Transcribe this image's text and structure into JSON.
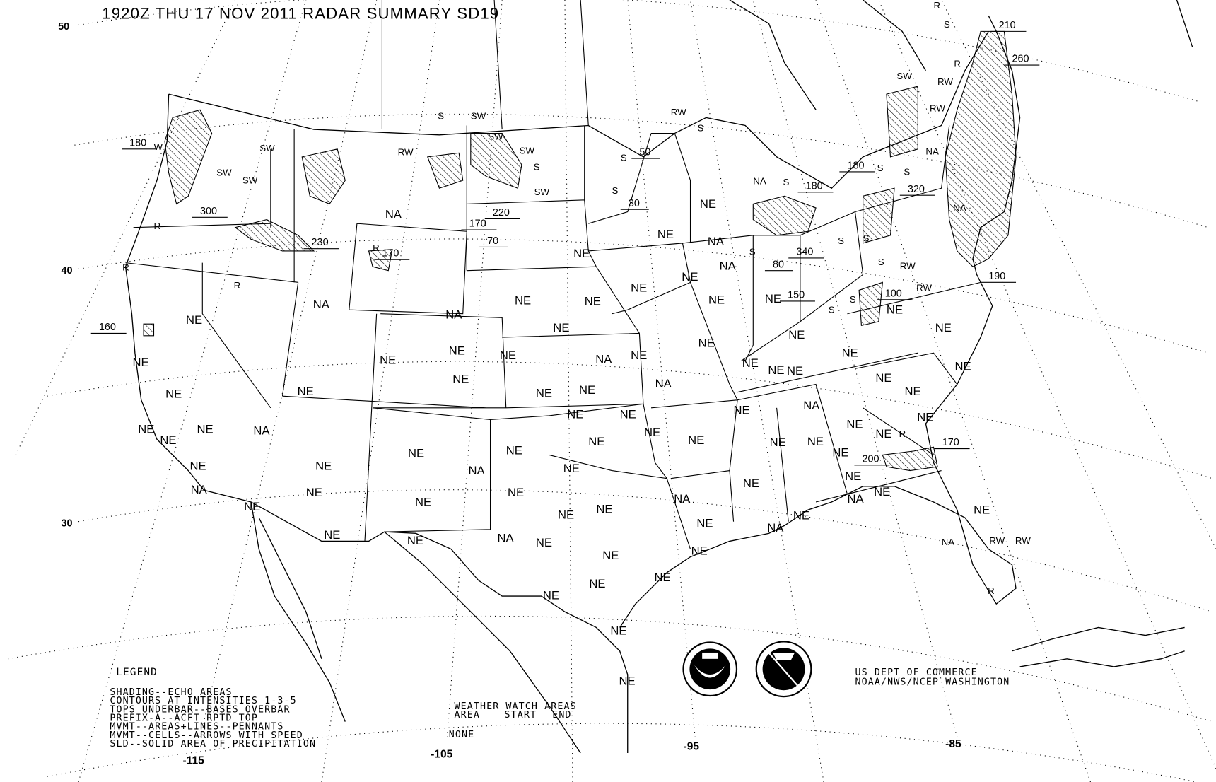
{
  "title": "1920Z THU 17 NOV 2011 RADAR SUMMARY SD19",
  "latitude_labels": [
    "50",
    "40",
    "30"
  ],
  "longitude_labels": [
    "-115",
    "-105",
    "-95",
    "-85"
  ],
  "legend": {
    "heading": "LEGEND",
    "lines": [
      "SHADING--ECHO AREAS",
      "CONTOURS AT INTENSITIES 1-3-5",
      "TOPS UNDERBAR--BASES OVERBAR",
      "PREFIX-A--ACFT RPTD TOP",
      "MVMT--AREAS+LINES--PENNANTS",
      "MVMT--CELLS--ARROWS WITH SPEED",
      "SLD--SOLID AREA OF PRECIPITATION"
    ]
  },
  "watch_areas": {
    "heading": "WEATHER WATCH AREAS",
    "columns": [
      "AREA",
      "START",
      "END"
    ],
    "value": "NONE"
  },
  "credit": {
    "line1": "US DEPT OF COMMERCE",
    "line2": "NOAA/NWS/NCEP WASHINGTON"
  },
  "logos": [
    "NOAA",
    "NATIONAL WEATHER SERVICE"
  ],
  "echo_tops": [
    "180",
    "300",
    "230",
    "170",
    "170",
    "70",
    "220",
    "50",
    "30",
    "180",
    "180",
    "320",
    "80",
    "340",
    "150",
    "100",
    "190",
    "210",
    "260",
    "160",
    "200",
    "170"
  ],
  "echo_codes": [
    "S",
    "SW",
    "SW",
    "SW",
    "S",
    "SW",
    "RW",
    "S",
    "S",
    "RW",
    "S",
    "SW",
    "SW",
    "SW",
    "W",
    "R",
    "R",
    "R",
    "R",
    "S",
    "R",
    "R",
    "RW",
    "SW",
    "RW",
    "S",
    "S",
    "NA",
    "S",
    "NA",
    "S",
    "S",
    "S",
    "S",
    "S",
    "RW",
    "RW",
    "S",
    "NA",
    "R",
    "R",
    "RW",
    "RW",
    "NA"
  ],
  "coverage": [
    "NA",
    "NE",
    "NE",
    "NA",
    "NE",
    "NA",
    "NE",
    "NE",
    "NE",
    "NE",
    "NA",
    "NE",
    "NE",
    "NA",
    "NE",
    "NE",
    "NE",
    "NE",
    "NE",
    "NA",
    "NE",
    "NE",
    "NE",
    "NE",
    "NE",
    "NE",
    "NE",
    "NE",
    "NA",
    "NE",
    "NE",
    "NE",
    "NE",
    "NE",
    "NE",
    "NE",
    "NE",
    "NE",
    "NE",
    "NE",
    "NA",
    "NE",
    "NE",
    "NE",
    "NE",
    "NE",
    "NE",
    "NE",
    "NE",
    "NA",
    "NE",
    "NE",
    "NE",
    "NE",
    "NE",
    "NE",
    "NE",
    "NE",
    "NE",
    "NE",
    "NA",
    "NE",
    "NE",
    "NA",
    "NE",
    "NE",
    "NE",
    "NA",
    "NE",
    "NA",
    "NE",
    "NE",
    "NE",
    "NE",
    "NE",
    "NE",
    "NE",
    "NA",
    "NE",
    "NE",
    "NA",
    "NE",
    "NE",
    "NE",
    "NE",
    "NE",
    "NE",
    "NE",
    "NE"
  ],
  "colors": {
    "background": "#ffffff",
    "ink": "#000000"
  }
}
